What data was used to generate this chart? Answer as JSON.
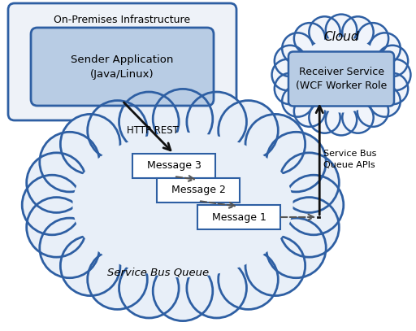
{
  "bg_color": "#ffffff",
  "cloud_fill": "#e8eff8",
  "cloud_edge": "#2e5fa3",
  "cloud_fill_white": "#f0f4fb",
  "box_fill": "#b8cce4",
  "box_edge": "#2e5fa3",
  "on_prem_fill": "#eef2f8",
  "on_prem_edge": "#2e5fa3",
  "msg_fill": "#ffffff",
  "msg_edge": "#2e5fa3",
  "text_color": "#000000",
  "arrow_color": "#111111",
  "dash_color": "#555555",
  "on_prem_label": "On-Premises Infrastructure",
  "sender_label": "Sender Application\n(Java/Linux)",
  "cloud_label": "Cloud",
  "receiver_label": "Receiver Service\n(WCF Worker Role",
  "queue_label": "Service Bus Queue",
  "msg1_label": "Message 1",
  "msg2_label": "Message 2",
  "msg3_label": "Message 3",
  "http_label": "HTTP REST",
  "api_label": "Service Bus\nQueue APIs"
}
